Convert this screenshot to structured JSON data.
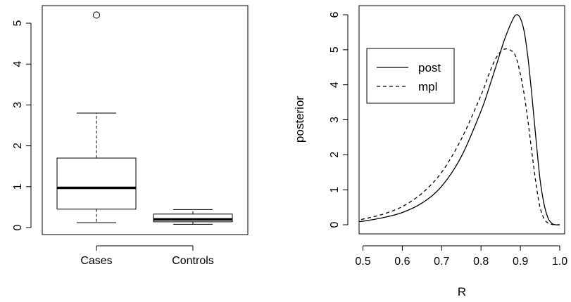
{
  "chart_data": [
    {
      "type": "boxplot",
      "title": "",
      "xlabel": "",
      "ylabel": "",
      "ylim": [
        0,
        5.4
      ],
      "y_ticks": [
        "0",
        "1",
        "2",
        "3",
        "4",
        "5"
      ],
      "categories": [
        "Cases",
        "Controls"
      ],
      "boxes": [
        {
          "name": "Cases",
          "min": 0.12,
          "q1": 0.45,
          "median": 0.97,
          "q3": 1.7,
          "max": 2.8,
          "outliers": [
            5.2
          ]
        },
        {
          "name": "Controls",
          "min": 0.08,
          "q1": 0.14,
          "median": 0.2,
          "q3": 0.33,
          "max": 0.44,
          "outliers": []
        }
      ]
    },
    {
      "type": "line",
      "title": "",
      "xlabel": "R",
      "ylabel": "posterior",
      "xlim": [
        0.48,
        1.0
      ],
      "ylim": [
        0,
        6.0
      ],
      "x_ticks": [
        "0.5",
        "0.6",
        "0.7",
        "0.8",
        "0.9",
        "1.0"
      ],
      "y_ticks": [
        "0",
        "1",
        "2",
        "3",
        "4",
        "5",
        "6"
      ],
      "legend": {
        "position": "top-left",
        "entries": [
          "post",
          "mpl"
        ]
      },
      "series": [
        {
          "name": "post",
          "style": "solid",
          "x": [
            0.48,
            0.5,
            0.55,
            0.6,
            0.65,
            0.7,
            0.75,
            0.8,
            0.82,
            0.84,
            0.86,
            0.88,
            0.89,
            0.9,
            0.91,
            0.92,
            0.93,
            0.94,
            0.95,
            0.96,
            0.97,
            0.98,
            0.99,
            1.0
          ],
          "y": [
            0.08,
            0.1,
            0.2,
            0.35,
            0.62,
            1.1,
            1.95,
            3.25,
            3.9,
            4.6,
            5.3,
            5.85,
            6.0,
            5.9,
            5.5,
            4.7,
            3.6,
            2.4,
            1.3,
            0.6,
            0.2,
            0.04,
            0.0,
            0.0
          ]
        },
        {
          "name": "mpl",
          "style": "dashed",
          "x": [
            0.48,
            0.5,
            0.55,
            0.6,
            0.65,
            0.7,
            0.75,
            0.8,
            0.82,
            0.84,
            0.86,
            0.88,
            0.89,
            0.9,
            0.91,
            0.92,
            0.93,
            0.94,
            0.95,
            0.96,
            0.97,
            0.98,
            0.99,
            1.0
          ],
          "y": [
            0.12,
            0.16,
            0.3,
            0.52,
            0.9,
            1.5,
            2.45,
            3.7,
            4.3,
            4.8,
            5.02,
            4.95,
            4.75,
            4.3,
            3.7,
            2.9,
            2.0,
            1.15,
            0.5,
            0.18,
            0.05,
            0.01,
            0.0,
            0.0
          ]
        }
      ]
    }
  ]
}
